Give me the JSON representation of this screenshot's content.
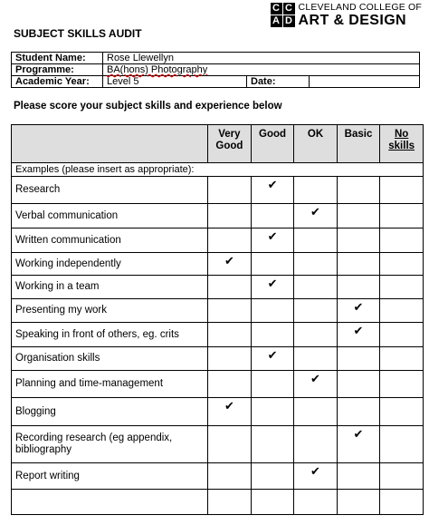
{
  "logo": {
    "letters": [
      "C",
      "C",
      "A",
      "D"
    ],
    "line1": "CLEVELAND COLLEGE OF",
    "line2": "ART & DESIGN"
  },
  "title": "SUBJECT SKILLS AUDIT",
  "info": {
    "student_label": "Student Name:",
    "student_value": "Rose Llewellyn",
    "programme_label": "Programme:",
    "programme_value": "BA(hons) Photography",
    "year_label": "Academic Year:",
    "year_value": "Level 5",
    "date_label": "Date:",
    "date_value": ""
  },
  "prompt": "Please score your subject skills and experience below",
  "columns": [
    "Very Good",
    "Good",
    "OK",
    "Basic",
    "No skills"
  ],
  "tick_symbol": "✔",
  "examples_label": "Examples (please insert as appropriate):",
  "skills": [
    {
      "name": "Research",
      "rating": 1,
      "height": 30
    },
    {
      "name": "Verbal communication",
      "rating": 2,
      "height": 27
    },
    {
      "name": "Written communication",
      "rating": 1,
      "height": 27
    },
    {
      "name": "Working independently",
      "rating": 0,
      "height": 25
    },
    {
      "name": "Working in a team",
      "rating": 1,
      "height": 26
    },
    {
      "name": "Presenting my work",
      "rating": 3,
      "height": 26
    },
    {
      "name": "Speaking in front of others, eg. crits",
      "rating": 3,
      "height": 27
    },
    {
      "name": "Organisation skills",
      "rating": 1,
      "height": 26
    },
    {
      "name": "Planning and time-management",
      "rating": 2,
      "height": 30
    },
    {
      "name": "Blogging",
      "rating": 0,
      "height": 31
    },
    {
      "name": "Recording research (eg appendix, bibliography",
      "rating": 3,
      "height": 41
    },
    {
      "name": "Report writing",
      "rating": 2,
      "height": 29
    },
    {
      "name": "",
      "rating": -1,
      "height": 28
    }
  ]
}
